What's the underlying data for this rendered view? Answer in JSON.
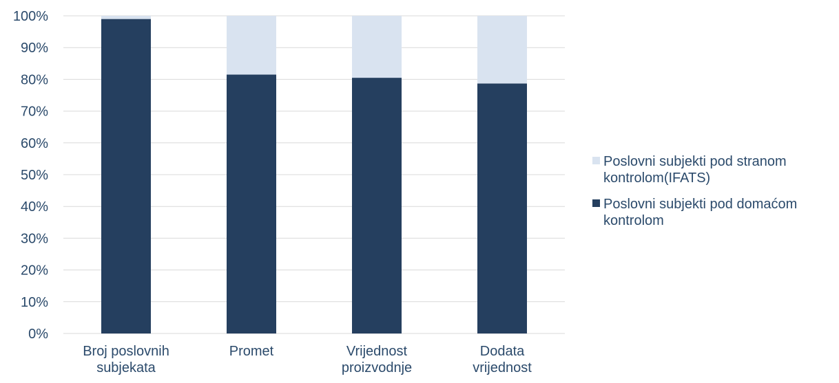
{
  "chart_data": {
    "type": "bar",
    "stacked": true,
    "percent_stacked": true,
    "categories": [
      [
        "Broj poslovnih",
        "subjekata"
      ],
      [
        "Promet"
      ],
      [
        "Vrijednost",
        "proizvodnje"
      ],
      [
        "Dodata",
        "vrijednost"
      ]
    ],
    "series": [
      {
        "name": "Poslovni subjekti pod domaćom kontrolom",
        "legend_lines": [
          "Poslovni subjekti pod domaćom",
          "kontrolom"
        ],
        "color": "#253f5f",
        "values": [
          99,
          81.5,
          80.5,
          78.7
        ]
      },
      {
        "name": "Poslovni subjekti pod stranom kontrolom(IFATS)",
        "legend_lines": [
          "Poslovni subjekti pod stranom",
          "kontrolom(IFATS)"
        ],
        "color": "#d9e3f0",
        "values": [
          1,
          18.5,
          19.5,
          21.3
        ]
      }
    ],
    "y_ticks": [
      "0%",
      "10%",
      "20%",
      "30%",
      "40%",
      "50%",
      "60%",
      "70%",
      "80%",
      "90%",
      "100%"
    ],
    "ylim": [
      0,
      100
    ],
    "grid": true,
    "legend_position": "right",
    "title": "",
    "xlabel": "",
    "ylabel": ""
  },
  "colors": {
    "grid": "#d9d9d9",
    "text": "#2b4a6b"
  }
}
